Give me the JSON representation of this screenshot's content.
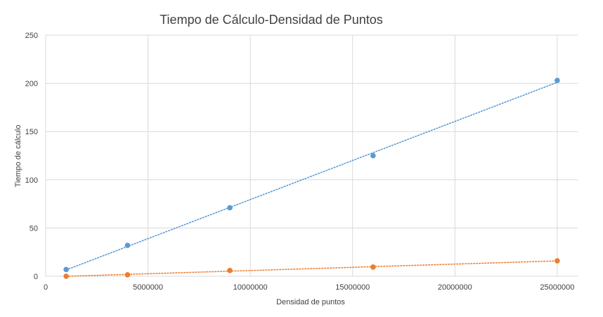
{
  "chart_data": {
    "type": "scatter",
    "title": "Tiempo de Cálculo-Densidad de Puntos",
    "xlabel": "Densidad de puntos",
    "ylabel": "Tiempo de cálculo",
    "xlim": [
      0,
      26000000
    ],
    "ylim": [
      0,
      250
    ],
    "xticks": [
      0,
      5000000,
      10000000,
      15000000,
      20000000,
      25000000
    ],
    "yticks": [
      0,
      50,
      100,
      150,
      200,
      250
    ],
    "xtick_labels": [
      "0",
      "5000000",
      "10000000",
      "15000000",
      "20000000",
      "25000000"
    ],
    "ytick_labels": [
      "0",
      "50",
      "100",
      "150",
      "200",
      "250"
    ],
    "grid": true,
    "trendlines": "linear, dotted",
    "series": [
      {
        "color": "#5b9bd5",
        "x": [
          1000000,
          4000000,
          9000000,
          16000000,
          25000000
        ],
        "y": [
          7,
          32,
          71,
          125,
          203
        ]
      },
      {
        "color": "#ed7d31",
        "x": [
          1000000,
          4000000,
          9000000,
          16000000,
          25000000
        ],
        "y": [
          0,
          1.5,
          6,
          9.5,
          16
        ]
      }
    ]
  }
}
